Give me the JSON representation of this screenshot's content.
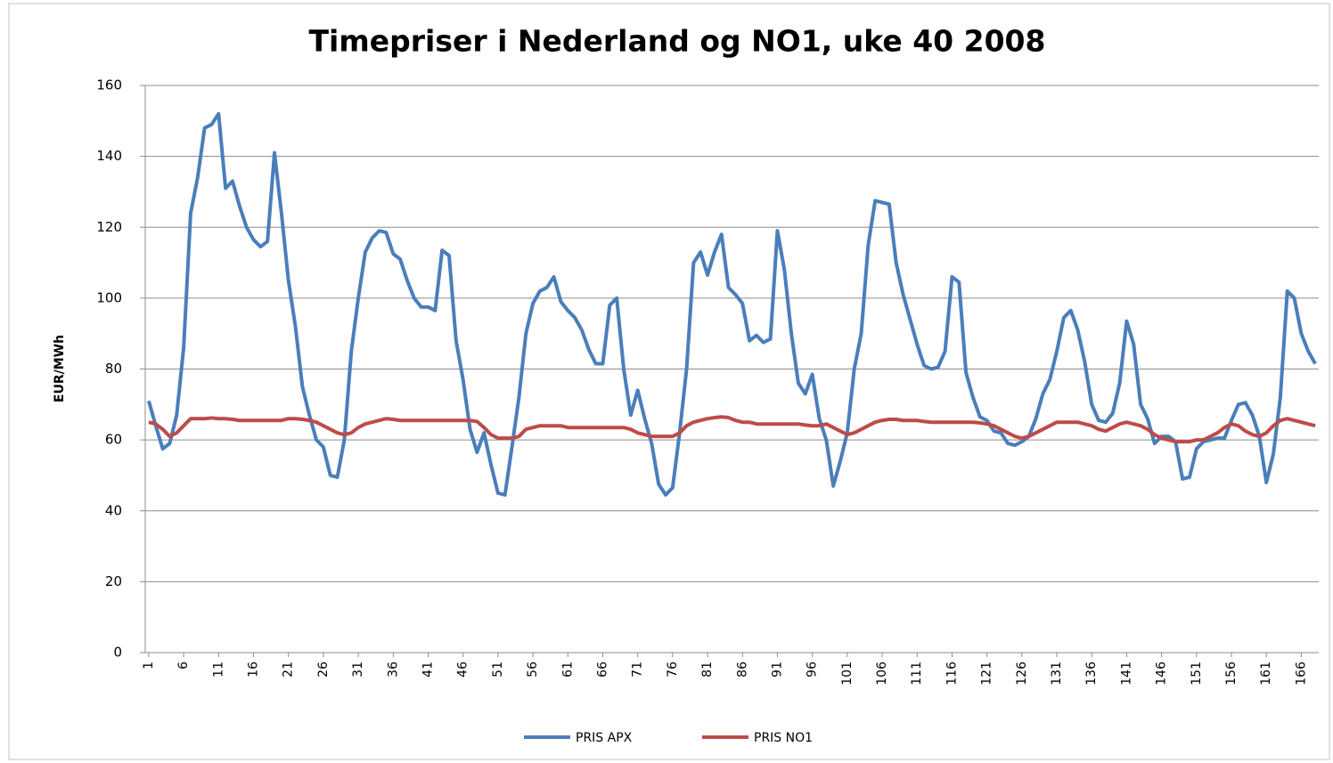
{
  "chart_data": {
    "type": "line",
    "title": "Timepriser i Nederland og NO1, uke 40 2008",
    "y_label": "EUR/MWh",
    "x": [
      1,
      2,
      3,
      4,
      5,
      6,
      7,
      8,
      9,
      10,
      11,
      12,
      13,
      14,
      15,
      16,
      17,
      18,
      19,
      20,
      21,
      22,
      23,
      24,
      25,
      26,
      27,
      28,
      29,
      30,
      31,
      32,
      33,
      34,
      35,
      36,
      37,
      38,
      39,
      40,
      41,
      42,
      43,
      44,
      45,
      46,
      47,
      48,
      49,
      50,
      51,
      52,
      53,
      54,
      55,
      56,
      57,
      58,
      59,
      60,
      61,
      62,
      63,
      64,
      65,
      66,
      67,
      68,
      69,
      70,
      71,
      72,
      73,
      74,
      75,
      76,
      77,
      78,
      79,
      80,
      81,
      82,
      83,
      84,
      85,
      86,
      87,
      88,
      89,
      90,
      91,
      92,
      93,
      94,
      95,
      96,
      97,
      98,
      99,
      100,
      101,
      102,
      103,
      104,
      105,
      106,
      107,
      108,
      109,
      110,
      111,
      112,
      113,
      114,
      115,
      116,
      117,
      118,
      119,
      120,
      121,
      122,
      123,
      124,
      125,
      126,
      127,
      128,
      129,
      130,
      131,
      132,
      133,
      134,
      135,
      136,
      137,
      138,
      139,
      140,
      141,
      142,
      143,
      144,
      145,
      146,
      147,
      148,
      149,
      150,
      151,
      152,
      153,
      154,
      155,
      156,
      157,
      158,
      159,
      160,
      161,
      162,
      163,
      164,
      165,
      166,
      167,
      168
    ],
    "series": [
      {
        "name": "PRIS APX",
        "color": "#4a7ebb",
        "values": [
          71,
          64,
          57.5,
          59,
          67,
          86,
          124,
          134,
          148,
          149,
          152,
          131,
          133,
          126,
          120,
          116.5,
          114.5,
          116,
          141,
          124,
          105,
          92,
          75,
          67,
          60,
          58,
          50,
          49.5,
          60,
          85,
          100,
          113,
          117,
          119,
          118.5,
          112.5,
          111,
          105,
          100,
          97.5,
          97.5,
          96.5,
          113.5,
          112,
          88,
          77,
          63,
          56.5,
          62,
          53,
          45,
          44.5,
          58,
          72,
          90,
          98.5,
          102,
          103,
          106,
          99,
          96.5,
          94.5,
          91,
          85.5,
          81.5,
          81.5,
          98,
          100,
          80,
          67,
          74,
          66,
          59,
          47.5,
          44.5,
          46.5,
          62,
          80,
          110,
          113,
          106.5,
          113,
          118,
          103,
          101,
          98.5,
          88,
          89.5,
          87.5,
          88.5,
          119,
          108,
          90,
          76,
          73,
          78.5,
          66,
          60,
          47,
          54,
          62,
          80,
          90,
          115,
          127.5,
          127,
          126.5,
          110,
          101,
          94,
          87,
          81,
          80,
          80.5,
          85,
          106,
          104.5,
          79,
          72,
          66.5,
          65.5,
          62.5,
          62,
          59,
          58.5,
          59.5,
          61,
          66,
          73,
          77,
          85,
          94.5,
          96.5,
          91,
          82,
          70,
          65.5,
          65,
          67.5,
          76,
          93.5,
          87,
          70,
          66,
          59,
          61,
          61,
          59.5,
          49,
          49.5,
          57.5,
          59.5,
          60,
          60.5,
          60.5,
          65.5,
          70,
          70.5,
          67,
          61,
          48,
          56,
          72,
          102,
          100,
          90,
          85,
          81.5
        ]
      },
      {
        "name": "PRIS NO1",
        "color": "#be4b48",
        "values": [
          65,
          64.5,
          63,
          61,
          62,
          64,
          66,
          66,
          66,
          66.2,
          66,
          66,
          65.8,
          65.5,
          65.5,
          65.5,
          65.5,
          65.5,
          65.5,
          65.5,
          66,
          66,
          65.8,
          65.5,
          65,
          64,
          63,
          62,
          61.5,
          62,
          63.5,
          64.5,
          65,
          65.5,
          66,
          65.8,
          65.5,
          65.5,
          65.5,
          65.5,
          65.5,
          65.5,
          65.5,
          65.5,
          65.5,
          65.5,
          65.5,
          65.2,
          63.5,
          61.5,
          60.5,
          60.5,
          60.5,
          61,
          63,
          63.5,
          64,
          64,
          64,
          64,
          63.5,
          63.5,
          63.5,
          63.5,
          63.5,
          63.5,
          63.5,
          63.5,
          63.5,
          63,
          62,
          61.5,
          61,
          61,
          61,
          61,
          62,
          64,
          65,
          65.5,
          66,
          66.3,
          66.5,
          66.3,
          65.5,
          65,
          65,
          64.5,
          64.5,
          64.5,
          64.5,
          64.5,
          64.5,
          64.5,
          64.2,
          64,
          64,
          64.5,
          63.5,
          62.5,
          61.5,
          62,
          63,
          64,
          65,
          65.5,
          65.8,
          65.8,
          65.5,
          65.5,
          65.5,
          65.2,
          65,
          65,
          65,
          65,
          65,
          65,
          65,
          64.8,
          64.5,
          64,
          63,
          62,
          61,
          60.5,
          61,
          62,
          63,
          64,
          65,
          65,
          65,
          65,
          64.5,
          64,
          63,
          62.5,
          63.5,
          64.5,
          65,
          64.5,
          64,
          63,
          61.5,
          60.5,
          60,
          59.5,
          59.5,
          59.5,
          60,
          60,
          61,
          62,
          63.5,
          64.5,
          64,
          62.5,
          61.5,
          61,
          62,
          64,
          65.5,
          66,
          65.5,
          65,
          64.5,
          64
        ]
      }
    ],
    "xlim": [
      0.5,
      168.5
    ],
    "xticks": [
      1,
      6,
      11,
      16,
      21,
      26,
      31,
      36,
      41,
      46,
      51,
      56,
      61,
      66,
      71,
      76,
      81,
      86,
      91,
      96,
      101,
      106,
      111,
      116,
      121,
      126,
      131,
      136,
      141,
      146,
      151,
      156,
      161,
      166
    ],
    "ylim": [
      0,
      160
    ],
    "yticks": [
      0,
      20,
      40,
      60,
      80,
      100,
      120,
      140,
      160
    ],
    "grid": true,
    "legend": "bottom"
  }
}
